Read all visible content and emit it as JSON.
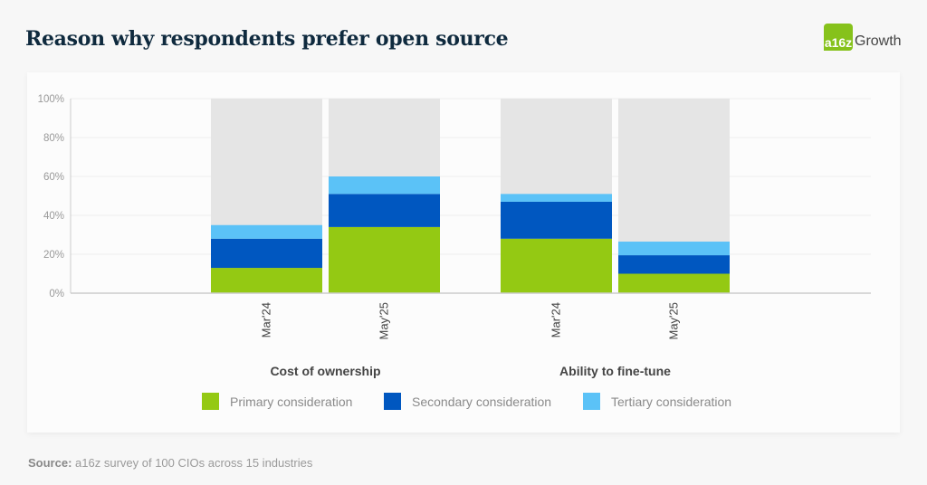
{
  "header": {
    "title": "Reason why respondents prefer open source",
    "logo_mark": "a16z",
    "logo_text": "Growth"
  },
  "source": {
    "label": "Source:",
    "text": "a16z survey of 100 CIOs across 15 industries"
  },
  "colors": {
    "primary": "#94c913",
    "secondary": "#0057c0",
    "tertiary": "#5bc2f7",
    "remainder": "#e5e5e5",
    "grid": "#eeeeee",
    "axis": "#cccccc",
    "tick_text": "#999999",
    "label_text": "#444444"
  },
  "chart_data": {
    "type": "bar",
    "stacked": true,
    "title": "Reason why respondents prefer open source",
    "xlabel": "",
    "ylabel": "",
    "ylim": [
      0,
      100
    ],
    "yticks": [
      "0%",
      "20%",
      "40%",
      "60%",
      "80%",
      "100%"
    ],
    "grid": true,
    "legend_position": "bottom",
    "groups": [
      "Cost of ownership",
      "Ability to fine-tune"
    ],
    "categories": [
      "Mar'24",
      "May'25",
      "Mar'24",
      "May'25"
    ],
    "category_group": [
      0,
      0,
      1,
      1
    ],
    "series": [
      {
        "name": "Primary consideration",
        "values": [
          13,
          34,
          28,
          10
        ]
      },
      {
        "name": "Secondary consideration",
        "values": [
          15,
          17,
          19,
          9.5
        ]
      },
      {
        "name": "Tertiary consideration",
        "values": [
          7,
          9,
          4,
          7
        ]
      }
    ],
    "remainder_to": 100
  }
}
